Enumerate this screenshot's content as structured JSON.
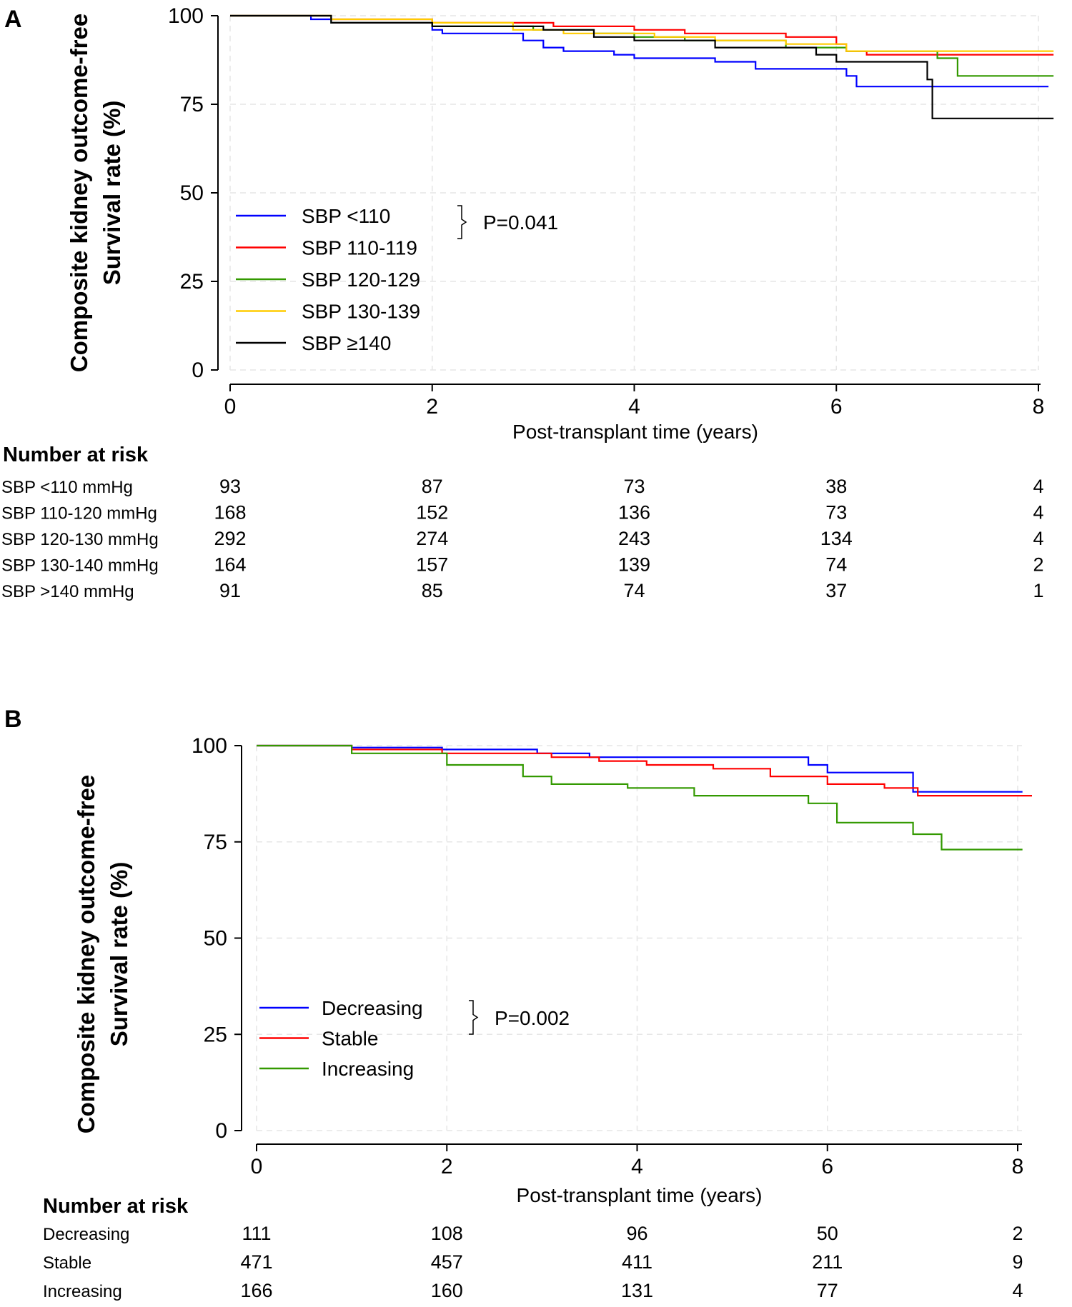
{
  "chart_data": [
    {
      "type": "line",
      "panel_label": "A",
      "ylabel": [
        "Composite kidney outcome-free",
        "Survival rate (%)"
      ],
      "xlabel": "Post-transplant time (years)",
      "xlim": [
        0,
        8.2
      ],
      "ylim": [
        0,
        100
      ],
      "xticks": [
        0,
        2,
        4,
        6,
        8
      ],
      "yticks": [
        0,
        25,
        50,
        75,
        100
      ],
      "grid": true,
      "legend_position": "center-left",
      "p_value": "P=0.041",
      "series": [
        {
          "name": "SBP <110",
          "color": "#0000ff",
          "points": [
            [
              0,
              100
            ],
            [
              0.8,
              100
            ],
            [
              0.8,
              99
            ],
            [
              1.0,
              99
            ],
            [
              1.0,
              98
            ],
            [
              2.0,
              98
            ],
            [
              2.0,
              96
            ],
            [
              2.1,
              96
            ],
            [
              2.1,
              95
            ],
            [
              2.9,
              95
            ],
            [
              2.9,
              93
            ],
            [
              3.1,
              93
            ],
            [
              3.1,
              91
            ],
            [
              3.3,
              91
            ],
            [
              3.3,
              90
            ],
            [
              3.8,
              90
            ],
            [
              3.8,
              89
            ],
            [
              4.0,
              89
            ],
            [
              4.0,
              88
            ],
            [
              4.8,
              88
            ],
            [
              4.8,
              87
            ],
            [
              5.2,
              87
            ],
            [
              5.2,
              85
            ],
            [
              6.1,
              85
            ],
            [
              6.1,
              83
            ],
            [
              6.2,
              83
            ],
            [
              6.2,
              80
            ],
            [
              8.1,
              80
            ]
          ]
        },
        {
          "name": "SBP 110-119",
          "color": "#ff0000",
          "points": [
            [
              0,
              100
            ],
            [
              1.0,
              100
            ],
            [
              1.0,
              99
            ],
            [
              2.0,
              99
            ],
            [
              2.0,
              98
            ],
            [
              3.2,
              98
            ],
            [
              3.2,
              97
            ],
            [
              4.0,
              97
            ],
            [
              4.0,
              96
            ],
            [
              4.5,
              96
            ],
            [
              4.5,
              95
            ],
            [
              5.5,
              95
            ],
            [
              5.5,
              94
            ],
            [
              6.0,
              94
            ],
            [
              6.0,
              92
            ],
            [
              6.1,
              92
            ],
            [
              6.1,
              90
            ],
            [
              6.3,
              90
            ],
            [
              6.3,
              89
            ],
            [
              8.15,
              89
            ]
          ]
        },
        {
          "name": "SBP 120-129",
          "color": "#339900",
          "points": [
            [
              0,
              100
            ],
            [
              1.0,
              100
            ],
            [
              1.0,
              98
            ],
            [
              2.0,
              98
            ],
            [
              2.0,
              97
            ],
            [
              3.0,
              97
            ],
            [
              3.0,
              96
            ],
            [
              3.6,
              96
            ],
            [
              3.6,
              95
            ],
            [
              4.0,
              95
            ],
            [
              4.0,
              94
            ],
            [
              4.5,
              94
            ],
            [
              4.5,
              93
            ],
            [
              5.5,
              93
            ],
            [
              5.5,
              91
            ],
            [
              6.1,
              91
            ],
            [
              6.1,
              90
            ],
            [
              7.0,
              90
            ],
            [
              7.0,
              88
            ],
            [
              7.2,
              88
            ],
            [
              7.2,
              83
            ],
            [
              8.15,
              83
            ]
          ]
        },
        {
          "name": "SBP 130-139",
          "color": "#ffcc00",
          "points": [
            [
              0,
              100
            ],
            [
              1.0,
              100
            ],
            [
              1.0,
              99
            ],
            [
              2.0,
              99
            ],
            [
              2.0,
              98
            ],
            [
              2.8,
              98
            ],
            [
              2.8,
              96
            ],
            [
              3.3,
              96
            ],
            [
              3.3,
              95
            ],
            [
              4.2,
              95
            ],
            [
              4.2,
              94
            ],
            [
              4.8,
              94
            ],
            [
              4.8,
              93
            ],
            [
              5.5,
              93
            ],
            [
              5.5,
              92
            ],
            [
              6.1,
              92
            ],
            [
              6.1,
              90
            ],
            [
              8.15,
              90
            ]
          ]
        },
        {
          "name": "SBP ≥140",
          "color": "#000000",
          "points": [
            [
              0,
              100
            ],
            [
              1.0,
              100
            ],
            [
              1.0,
              98
            ],
            [
              2.0,
              98
            ],
            [
              2.0,
              97
            ],
            [
              3.1,
              97
            ],
            [
              3.1,
              96
            ],
            [
              3.6,
              96
            ],
            [
              3.6,
              94
            ],
            [
              4.0,
              94
            ],
            [
              4.0,
              93
            ],
            [
              4.8,
              93
            ],
            [
              4.8,
              91
            ],
            [
              5.8,
              91
            ],
            [
              5.8,
              89
            ],
            [
              6.0,
              89
            ],
            [
              6.0,
              87
            ],
            [
              6.9,
              87
            ],
            [
              6.9,
              82
            ],
            [
              6.95,
              82
            ],
            [
              6.95,
              71
            ],
            [
              8.15,
              71
            ]
          ]
        }
      ],
      "risk_table": {
        "title": "Number at risk",
        "times": [
          0,
          2,
          4,
          6,
          8
        ],
        "rows": [
          {
            "label": "SBP <110 mmHg",
            "values": [
              "93",
              "87",
              "73",
              "38",
              "4"
            ]
          },
          {
            "label": "SBP 110-120 mmHg",
            "values": [
              "168",
              "152",
              "136",
              "73",
              "4"
            ]
          },
          {
            "label": "SBP 120-130 mmHg",
            "values": [
              "292",
              "274",
              "243",
              "134",
              "4"
            ]
          },
          {
            "label": "SBP 130-140 mmHg",
            "values": [
              "164",
              "157",
              "139",
              "74",
              "2"
            ]
          },
          {
            "label": "SBP >140 mmHg",
            "values": [
              "91",
              "85",
              "74",
              "37",
              "1"
            ]
          }
        ]
      }
    },
    {
      "type": "line",
      "panel_label": "B",
      "ylabel": [
        "Composite kidney outcome-free",
        "Survival rate (%)"
      ],
      "xlabel": "Post-transplant time (years)",
      "xlim": [
        0,
        8.2
      ],
      "ylim": [
        0,
        100
      ],
      "xticks": [
        0,
        2,
        4,
        6,
        8
      ],
      "yticks": [
        0,
        25,
        50,
        75,
        100
      ],
      "grid": true,
      "legend_position": "center-left",
      "p_value": "P=0.002",
      "series": [
        {
          "name": "Decreasing",
          "color": "#0000ff",
          "points": [
            [
              0,
              100
            ],
            [
              1.0,
              100
            ],
            [
              1.0,
              99.5
            ],
            [
              1.95,
              99.5
            ],
            [
              1.95,
              99
            ],
            [
              2.95,
              99
            ],
            [
              2.95,
              98
            ],
            [
              3.5,
              98
            ],
            [
              3.5,
              97
            ],
            [
              5.8,
              97
            ],
            [
              5.8,
              95
            ],
            [
              6.0,
              95
            ],
            [
              6.0,
              93
            ],
            [
              6.9,
              93
            ],
            [
              6.9,
              88
            ],
            [
              8.05,
              88
            ]
          ]
        },
        {
          "name": "Stable",
          "color": "#ff0000",
          "points": [
            [
              0,
              100
            ],
            [
              1.0,
              100
            ],
            [
              1.0,
              99
            ],
            [
              1.95,
              99
            ],
            [
              1.95,
              98
            ],
            [
              3.1,
              98
            ],
            [
              3.1,
              97
            ],
            [
              3.6,
              97
            ],
            [
              3.6,
              96
            ],
            [
              4.1,
              96
            ],
            [
              4.1,
              95
            ],
            [
              4.8,
              95
            ],
            [
              4.8,
              94
            ],
            [
              5.4,
              94
            ],
            [
              5.4,
              92
            ],
            [
              6.0,
              92
            ],
            [
              6.0,
              90
            ],
            [
              6.6,
              90
            ],
            [
              6.6,
              89
            ],
            [
              6.95,
              89
            ],
            [
              6.95,
              87
            ],
            [
              8.15,
              87
            ]
          ]
        },
        {
          "name": "Increasing",
          "color": "#339900",
          "points": [
            [
              0,
              100
            ],
            [
              1.0,
              100
            ],
            [
              1.0,
              98
            ],
            [
              2.0,
              98
            ],
            [
              2.0,
              95
            ],
            [
              2.8,
              95
            ],
            [
              2.8,
              92
            ],
            [
              3.1,
              92
            ],
            [
              3.1,
              90
            ],
            [
              3.9,
              90
            ],
            [
              3.9,
              89
            ],
            [
              4.6,
              89
            ],
            [
              4.6,
              87
            ],
            [
              5.8,
              87
            ],
            [
              5.8,
              85
            ],
            [
              6.1,
              85
            ],
            [
              6.1,
              80
            ],
            [
              6.9,
              80
            ],
            [
              6.9,
              77
            ],
            [
              7.2,
              77
            ],
            [
              7.2,
              73
            ],
            [
              8.05,
              73
            ]
          ]
        }
      ],
      "risk_table": {
        "title": "Number at risk",
        "times": [
          0,
          2,
          4,
          6,
          8
        ],
        "rows": [
          {
            "label": "Decreasing",
            "values": [
              "111",
              "108",
              "96",
              "50",
              "2"
            ]
          },
          {
            "label": "Stable",
            "values": [
              "471",
              "457",
              "411",
              "211",
              "9"
            ]
          },
          {
            "label": "Increasing",
            "values": [
              "166",
              "160",
              "131",
              "77",
              "4"
            ]
          }
        ]
      }
    }
  ]
}
